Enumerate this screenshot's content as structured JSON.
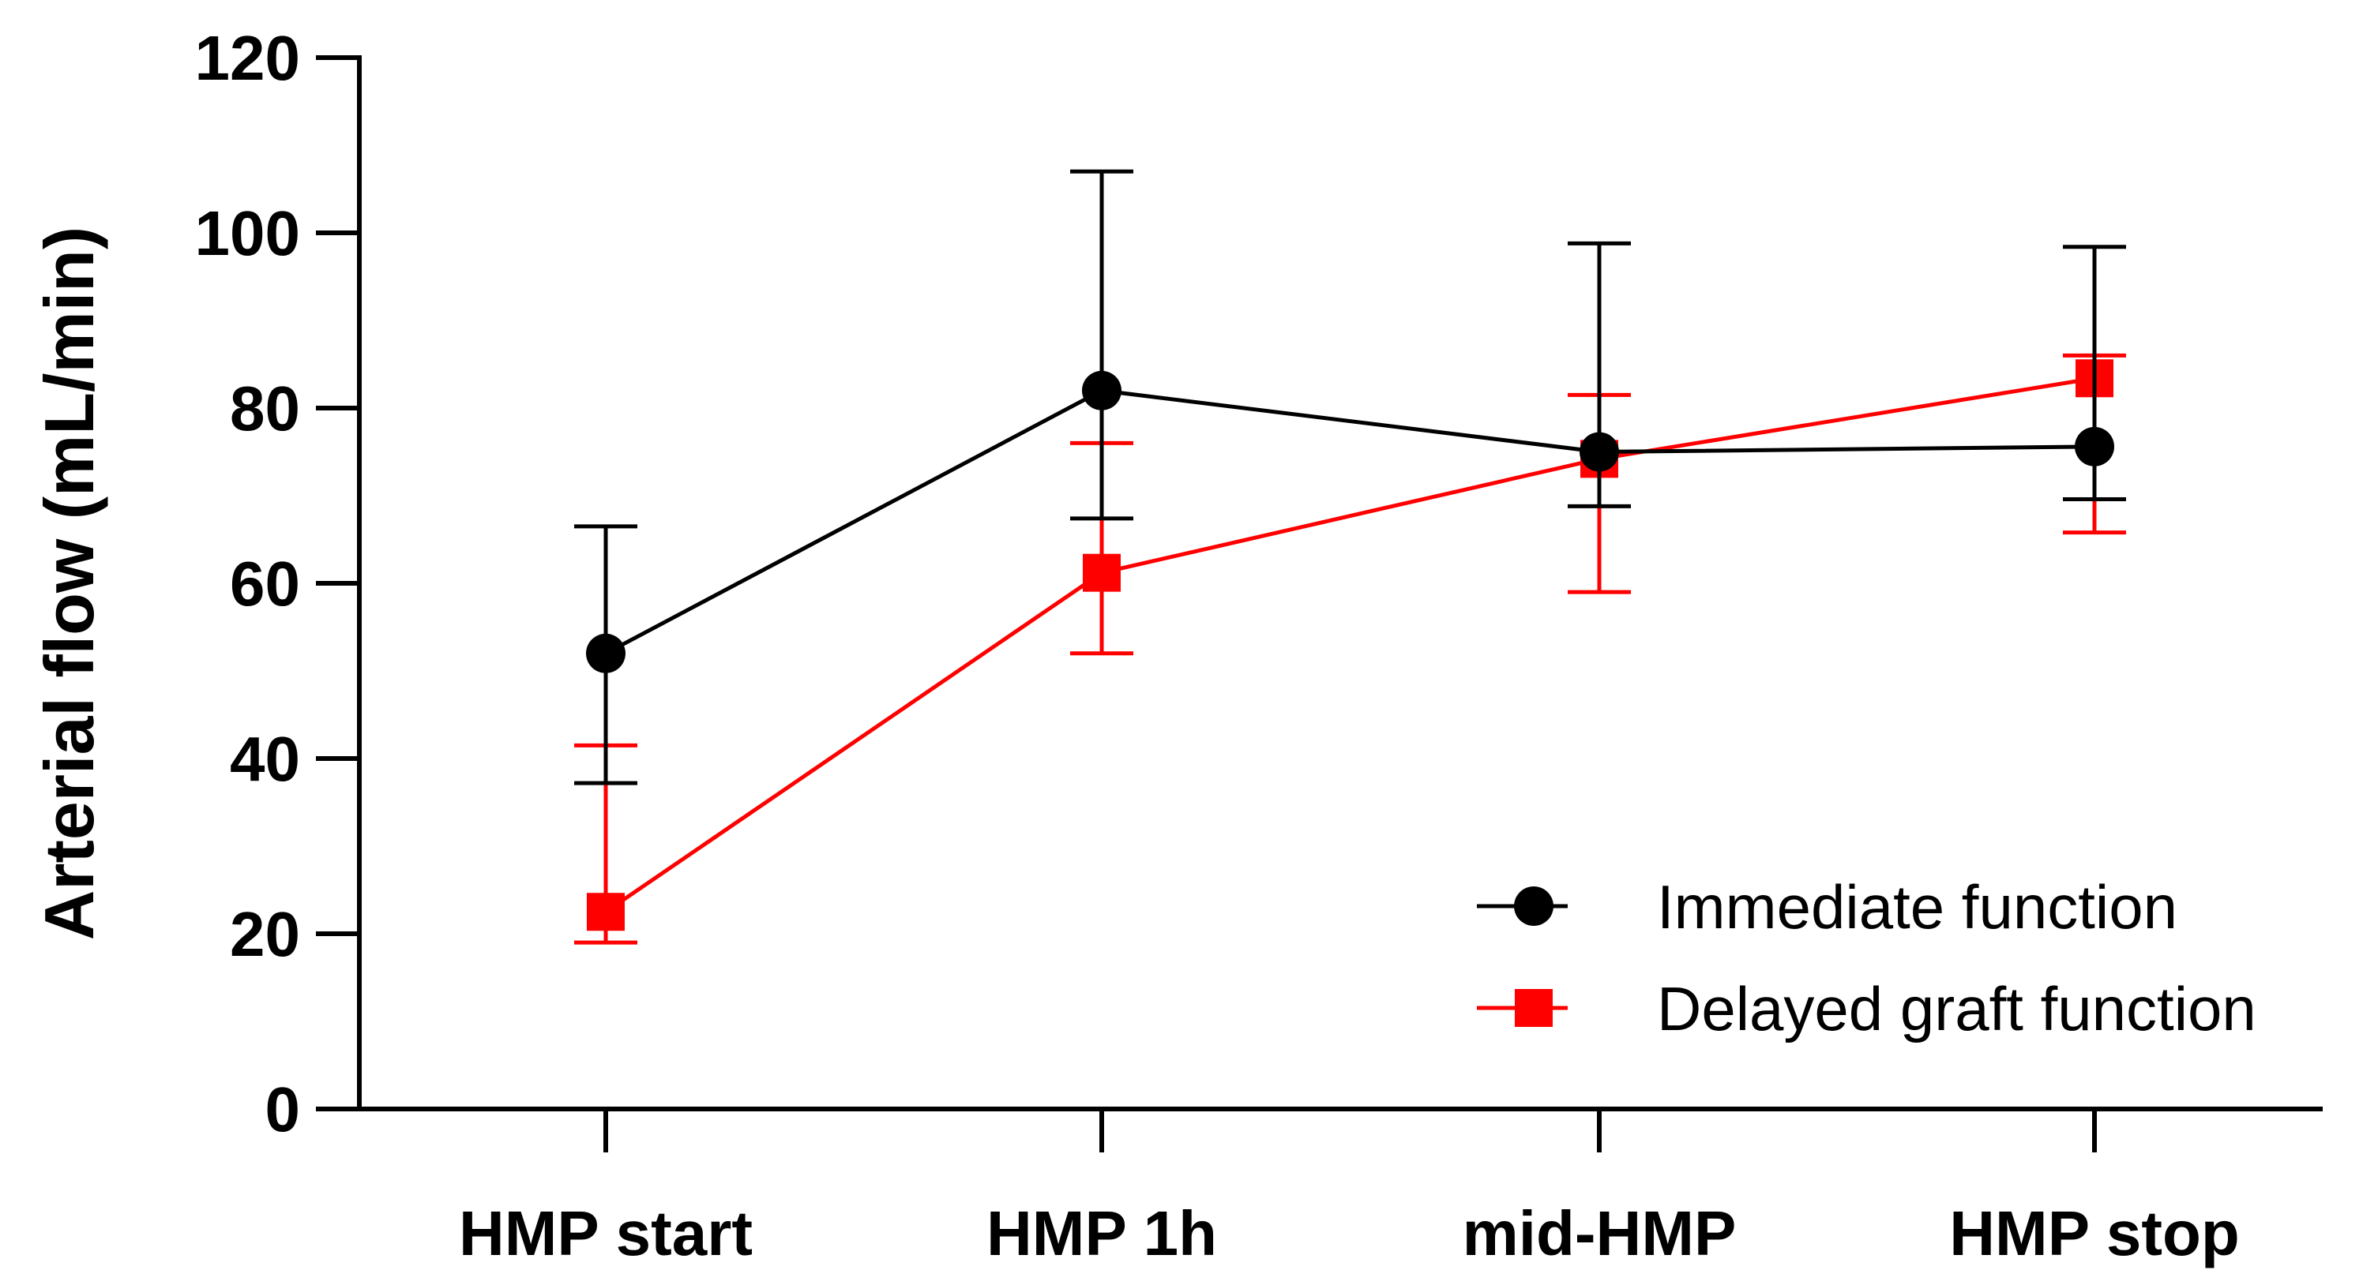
{
  "chart_data": {
    "type": "line",
    "title": "",
    "xlabel": "",
    "ylabel": "Arterial flow (mL/min)",
    "categories": [
      "HMP start",
      "HMP 1h",
      "mid-HMP",
      "HMP stop"
    ],
    "ylim": [
      0,
      120
    ],
    "yticks": [
      0,
      20,
      40,
      60,
      80,
      100,
      120
    ],
    "ytick_labels": [
      "0",
      "20",
      "40",
      "60",
      "80",
      "100",
      "120"
    ],
    "grid": false,
    "legend_position": "bottom-right",
    "series": [
      {
        "name": "Immediate function",
        "color": "#000000",
        "marker": "circle",
        "values": [
          52,
          82,
          75,
          75.6
        ],
        "error_upper": [
          66.5,
          107,
          98.8,
          98.4
        ],
        "error_lower": [
          37.2,
          67.4,
          68.8,
          69.6
        ]
      },
      {
        "name": "Delayed graft function",
        "color": "#ff0000",
        "marker": "square",
        "values": [
          22.5,
          61.2,
          74.2,
          83.4
        ],
        "error_upper": [
          41.5,
          76,
          81.5,
          86
        ],
        "error_lower": [
          19,
          52,
          59,
          65.8
        ]
      }
    ]
  }
}
